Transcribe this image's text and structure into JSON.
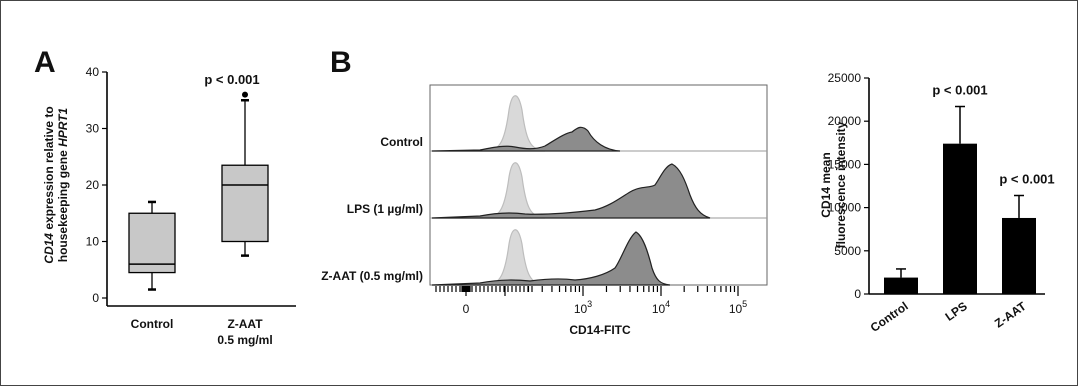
{
  "chart_data": [
    {
      "panel": "A",
      "type": "box",
      "ylabel_italic_1": "CD14",
      "ylabel_rest_1": " expression relative to",
      "ylabel_2": "housekeeping gene ",
      "ylabel_italic_2": "HPRT1",
      "ylim": [
        0,
        40
      ],
      "yticks": [
        "0",
        "10",
        "20",
        "30",
        "40"
      ],
      "categories": [
        "Control",
        "Z-AAT",
        "0.5 mg/ml"
      ],
      "boxes": [
        {
          "name": "Control",
          "whisker_low": 1.5,
          "q1": 4.5,
          "median": 6,
          "q3": 15,
          "whisker_high": 17
        },
        {
          "name": "Z-AAT 0.5 mg/ml",
          "whisker_low": 7.5,
          "q1": 10,
          "median": 20,
          "q3": 23.5,
          "whisker_high": 35,
          "outliers": [
            36
          ]
        }
      ],
      "annotation": "p < 0.001"
    },
    {
      "panel": "B",
      "type": "histogram-overlay",
      "rows": [
        "Control",
        "LPS (1 µg/ml)",
        "Z-AAT (0.5 mg/ml)"
      ],
      "xlabel": "CD14-FITC",
      "xticks": [
        "0",
        "10",
        "10",
        "10"
      ],
      "xtick_exponents": [
        "",
        "3",
        "4",
        "5"
      ],
      "fill_light": "#d9d9d9",
      "fill_dark": "#8c8c8c"
    },
    {
      "type": "bar",
      "ylabel_1": "CD14 mean",
      "ylabel_2": "fluorescence intensity",
      "ylim": [
        0,
        25000
      ],
      "yticks": [
        "0",
        "5000",
        "10000",
        "15000",
        "20000",
        "25000"
      ],
      "categories": [
        "Control",
        "LPS",
        "Z-AAT"
      ],
      "values": [
        1900,
        17400,
        8800
      ],
      "errors": [
        1000,
        4300,
        2600
      ],
      "annotations": [
        "",
        "p < 0.001",
        "p < 0.001"
      ],
      "bar_color": "#000000"
    }
  ]
}
